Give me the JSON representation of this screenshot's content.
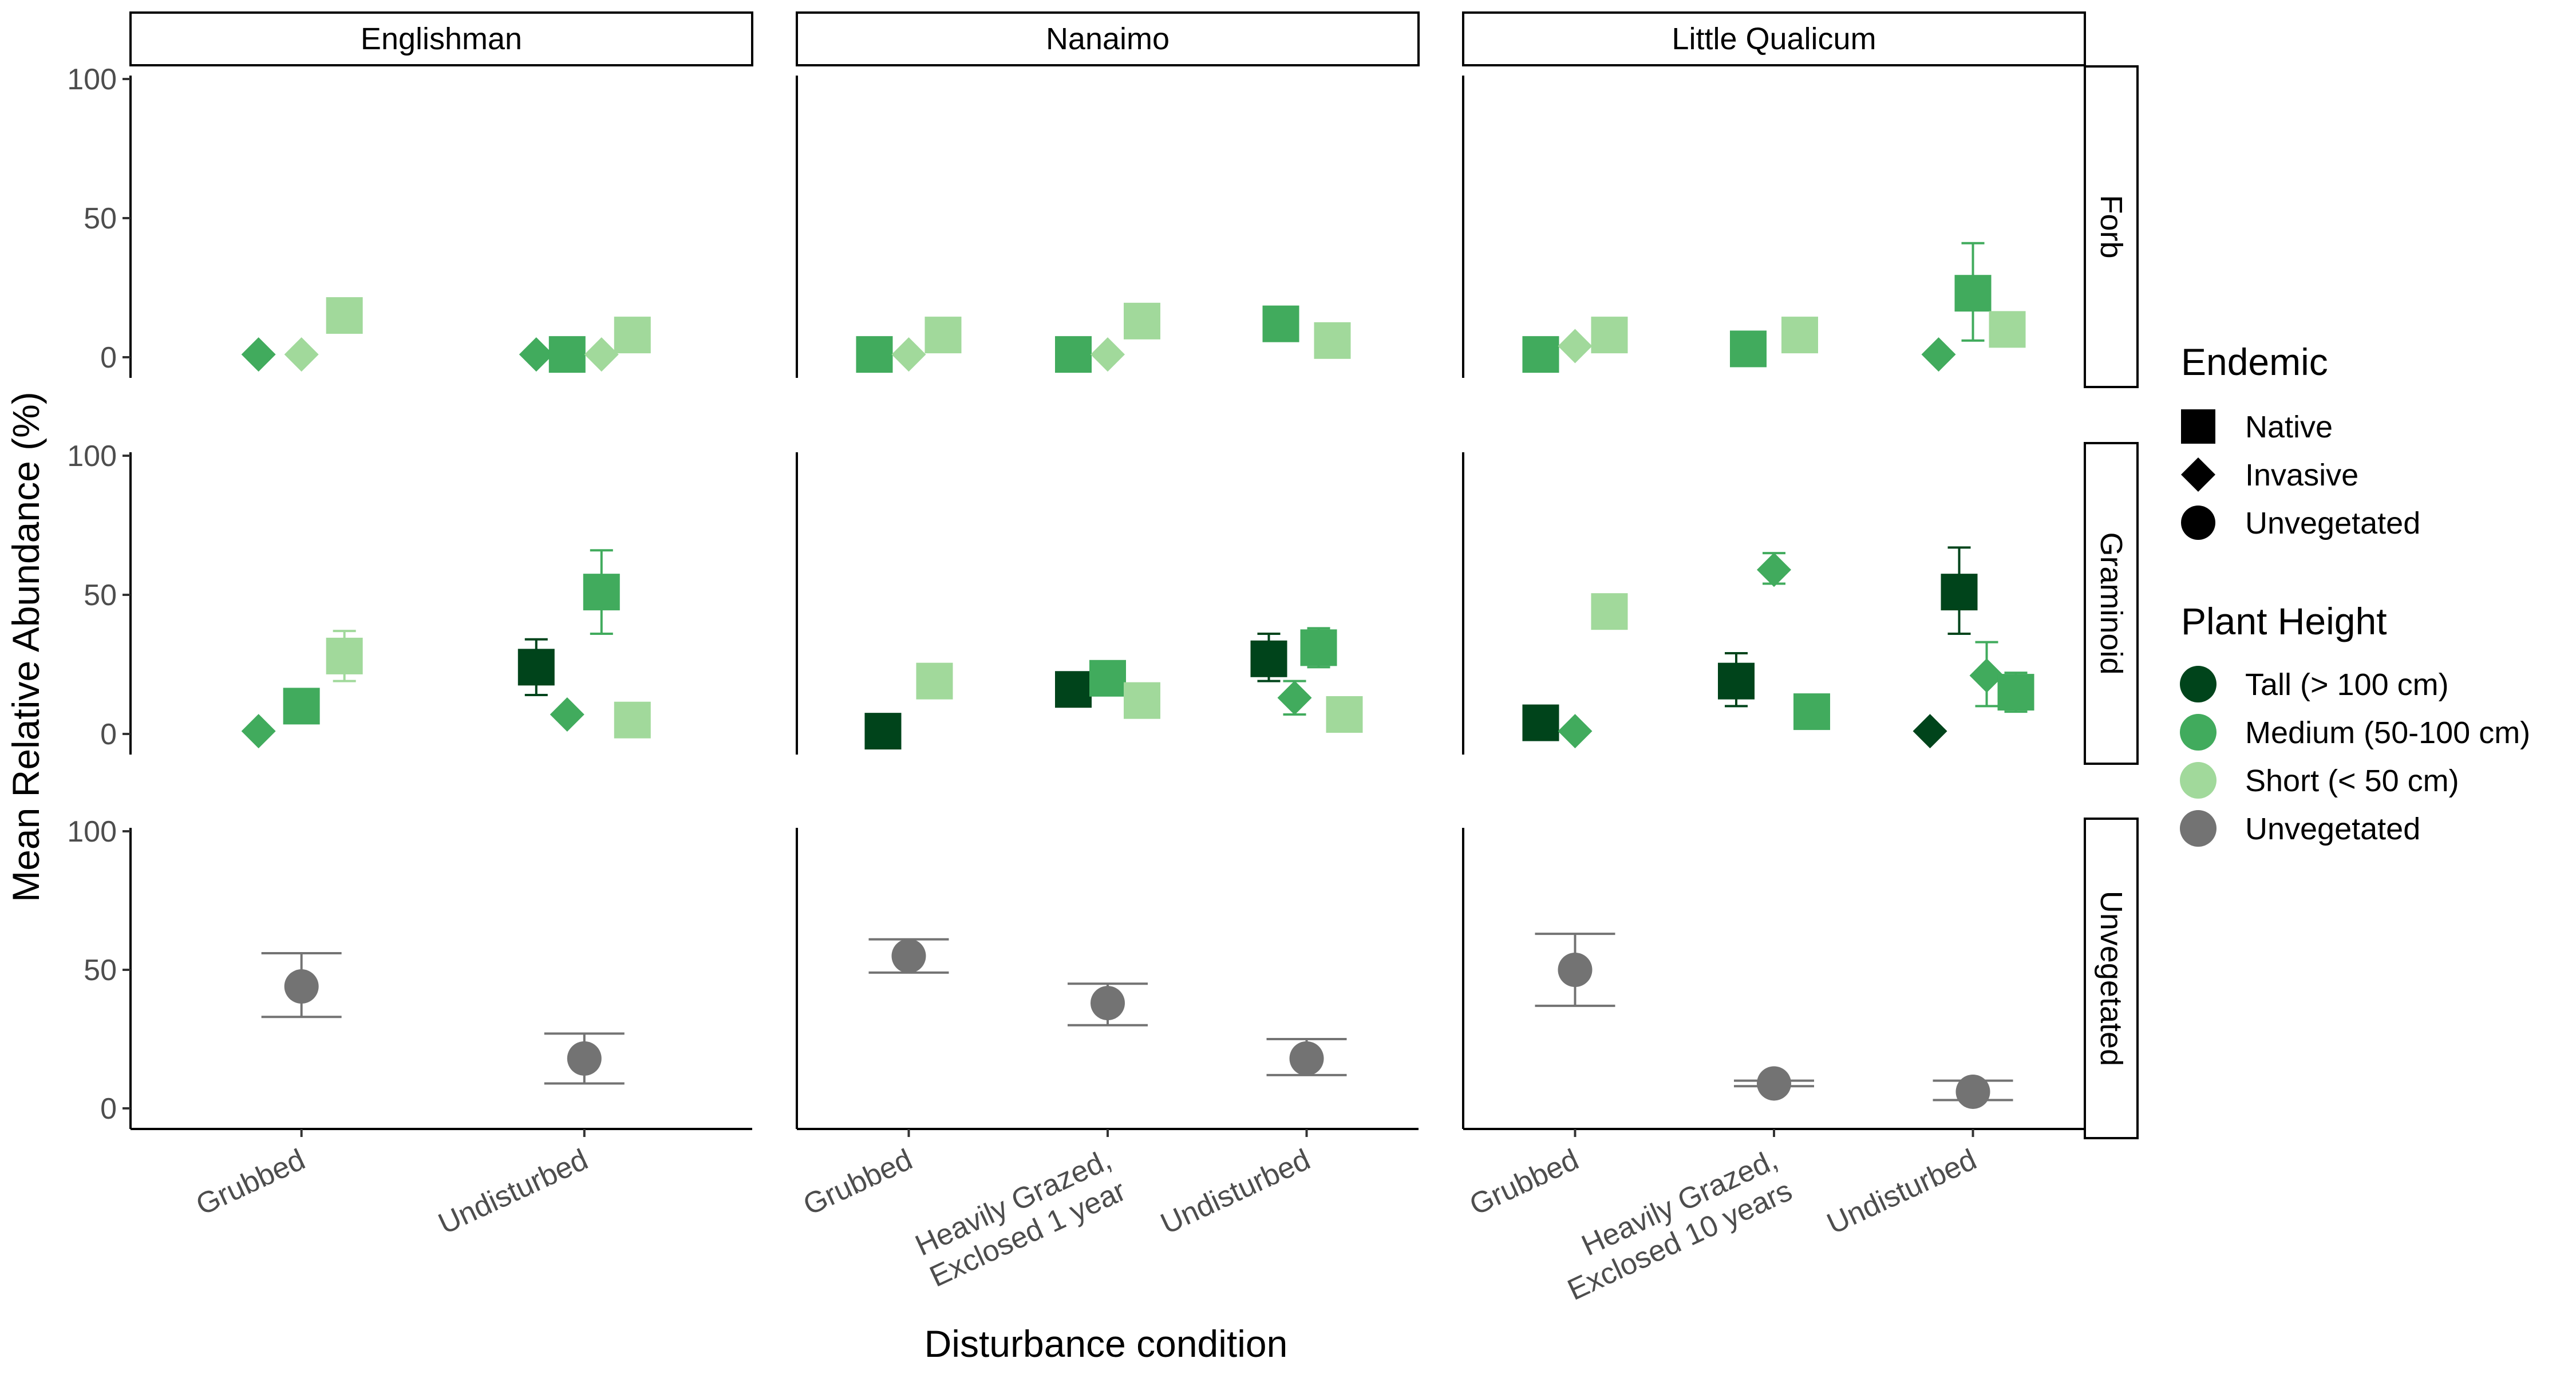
{
  "chart_data": {
    "type": "scatter",
    "title": "",
    "xlabel": "Disturbance condition",
    "ylabel": "Mean Relative Abundance (%)",
    "ylim": [
      0,
      100
    ],
    "yticks": [
      "0",
      "50",
      "100"
    ],
    "grid": false,
    "legend_position": "right",
    "facet_columns": [
      "Englishman",
      "Nanaimo",
      "Little Qualicum"
    ],
    "facet_rows": [
      "Forb",
      "Graminoid",
      "Unvegetated"
    ],
    "conditions": {
      "Englishman": [
        "Grubbed",
        "Undisturbed"
      ],
      "Nanaimo": [
        "Grubbed",
        "Heavily Grazed, Exclosed 1 year",
        "Undisturbed"
      ],
      "Little Qualicum": [
        "Grubbed",
        "Heavily Grazed, Exclosed 10 years",
        "Undisturbed"
      ]
    },
    "legends": {
      "endemic": {
        "title": "Endemic",
        "items": [
          {
            "label": "Native",
            "shape": "square"
          },
          {
            "label": "Invasive",
            "shape": "diamond"
          },
          {
            "label": "Unvegetated",
            "shape": "circle"
          }
        ]
      },
      "height": {
        "title": "Plant Height",
        "items": [
          {
            "label": "Tall (> 100 cm)",
            "color": "#00441b"
          },
          {
            "label": "Medium (50-100 cm)",
            "color": "#41ab5d"
          },
          {
            "label": "Short (< 50 cm)",
            "color": "#a1d99b"
          },
          {
            "label": "Unvegetated",
            "color": "#737373"
          }
        ]
      }
    },
    "colors": {
      "Tall": "#00441b",
      "Medium": "#41ab5d",
      "Short": "#a1d99b",
      "Unvegetated": "#737373"
    },
    "points": [
      {
        "col": "Englishman",
        "row": "Forb",
        "cond": 0,
        "offset": -0.25,
        "shape": "diamond",
        "height": "Medium",
        "y": 1
      },
      {
        "col": "Englishman",
        "row": "Forb",
        "cond": 0,
        "offset": 0,
        "shape": "diamond",
        "height": "Short",
        "y": 1
      },
      {
        "col": "Englishman",
        "row": "Forb",
        "cond": 0,
        "offset": 0.25,
        "shape": "square",
        "height": "Short",
        "y": 15
      },
      {
        "col": "Englishman",
        "row": "Forb",
        "cond": 1,
        "offset": -0.28,
        "shape": "diamond",
        "height": "Medium",
        "y": 1
      },
      {
        "col": "Englishman",
        "row": "Forb",
        "cond": 1,
        "offset": -0.1,
        "shape": "square",
        "height": "Medium",
        "y": 1
      },
      {
        "col": "Englishman",
        "row": "Forb",
        "cond": 1,
        "offset": 0.1,
        "shape": "diamond",
        "height": "Short",
        "y": 1
      },
      {
        "col": "Englishman",
        "row": "Forb",
        "cond": 1,
        "offset": 0.28,
        "shape": "square",
        "height": "Short",
        "y": 8
      },
      {
        "col": "Englishman",
        "row": "Graminoid",
        "cond": 0,
        "offset": -0.25,
        "shape": "diamond",
        "height": "Medium",
        "y": 1
      },
      {
        "col": "Englishman",
        "row": "Graminoid",
        "cond": 0,
        "offset": 0,
        "shape": "square",
        "height": "Medium",
        "y": 10
      },
      {
        "col": "Englishman",
        "row": "Graminoid",
        "cond": 0,
        "offset": 0.25,
        "shape": "square",
        "height": "Short",
        "y": 28,
        "lo": 19,
        "hi": 37
      },
      {
        "col": "Englishman",
        "row": "Graminoid",
        "cond": 1,
        "offset": -0.28,
        "shape": "square",
        "height": "Tall",
        "y": 24,
        "lo": 14,
        "hi": 34
      },
      {
        "col": "Englishman",
        "row": "Graminoid",
        "cond": 1,
        "offset": -0.1,
        "shape": "diamond",
        "height": "Medium",
        "y": 7
      },
      {
        "col": "Englishman",
        "row": "Graminoid",
        "cond": 1,
        "offset": 0.1,
        "shape": "square",
        "height": "Medium",
        "y": 51,
        "lo": 36,
        "hi": 66
      },
      {
        "col": "Englishman",
        "row": "Graminoid",
        "cond": 1,
        "offset": 0.28,
        "shape": "square",
        "height": "Short",
        "y": 5
      },
      {
        "col": "Englishman",
        "row": "Unvegetated",
        "cond": 0,
        "offset": 0,
        "shape": "circle",
        "height": "Unvegetated",
        "y": 44,
        "lo": 33,
        "hi": 56
      },
      {
        "col": "Englishman",
        "row": "Unvegetated",
        "cond": 1,
        "offset": 0,
        "shape": "circle",
        "height": "Unvegetated",
        "y": 18,
        "lo": 9,
        "hi": 27
      },
      {
        "col": "Nanaimo",
        "row": "Forb",
        "cond": 0,
        "offset": -0.2,
        "shape": "square",
        "height": "Medium",
        "y": 1
      },
      {
        "col": "Nanaimo",
        "row": "Forb",
        "cond": 0,
        "offset": 0,
        "shape": "diamond",
        "height": "Short",
        "y": 1
      },
      {
        "col": "Nanaimo",
        "row": "Forb",
        "cond": 0,
        "offset": 0.2,
        "shape": "square",
        "height": "Short",
        "y": 8
      },
      {
        "col": "Nanaimo",
        "row": "Forb",
        "cond": 1,
        "offset": -0.2,
        "shape": "square",
        "height": "Medium",
        "y": 1
      },
      {
        "col": "Nanaimo",
        "row": "Forb",
        "cond": 1,
        "offset": 0,
        "shape": "diamond",
        "height": "Short",
        "y": 1
      },
      {
        "col": "Nanaimo",
        "row": "Forb",
        "cond": 1,
        "offset": 0.2,
        "shape": "square",
        "height": "Short",
        "y": 13
      },
      {
        "col": "Nanaimo",
        "row": "Forb",
        "cond": 2,
        "offset": -0.15,
        "shape": "square",
        "height": "Medium",
        "y": 12
      },
      {
        "col": "Nanaimo",
        "row": "Forb",
        "cond": 2,
        "offset": 0.15,
        "shape": "square",
        "height": "Short",
        "y": 6
      },
      {
        "col": "Nanaimo",
        "row": "Graminoid",
        "cond": 0,
        "offset": -0.15,
        "shape": "square",
        "height": "Tall",
        "y": 1
      },
      {
        "col": "Nanaimo",
        "row": "Graminoid",
        "cond": 0,
        "offset": 0.15,
        "shape": "square",
        "height": "Short",
        "y": 19
      },
      {
        "col": "Nanaimo",
        "row": "Graminoid",
        "cond": 1,
        "offset": -0.2,
        "shape": "square",
        "height": "Tall",
        "y": 16
      },
      {
        "col": "Nanaimo",
        "row": "Graminoid",
        "cond": 1,
        "offset": 0,
        "shape": "square",
        "height": "Medium",
        "y": 20
      },
      {
        "col": "Nanaimo",
        "row": "Graminoid",
        "cond": 1,
        "offset": 0.2,
        "shape": "square",
        "height": "Short",
        "y": 12
      },
      {
        "col": "Nanaimo",
        "row": "Graminoid",
        "cond": 2,
        "offset": -0.22,
        "shape": "square",
        "height": "Tall",
        "y": 27,
        "lo": 19,
        "hi": 36
      },
      {
        "col": "Nanaimo",
        "row": "Graminoid",
        "cond": 2,
        "offset": -0.07,
        "shape": "diamond",
        "height": "Medium",
        "y": 13,
        "lo": 7,
        "hi": 19
      },
      {
        "col": "Nanaimo",
        "row": "Graminoid",
        "cond": 2,
        "offset": 0.07,
        "shape": "square",
        "height": "Medium",
        "y": 31,
        "lo": 24,
        "hi": 38
      },
      {
        "col": "Nanaimo",
        "row": "Graminoid",
        "cond": 2,
        "offset": 0.22,
        "shape": "square",
        "height": "Short",
        "y": 7
      },
      {
        "col": "Nanaimo",
        "row": "Unvegetated",
        "cond": 0,
        "offset": 0,
        "shape": "circle",
        "height": "Unvegetated",
        "y": 55,
        "lo": 49,
        "hi": 61
      },
      {
        "col": "Nanaimo",
        "row": "Unvegetated",
        "cond": 1,
        "offset": 0,
        "shape": "circle",
        "height": "Unvegetated",
        "y": 38,
        "lo": 30,
        "hi": 45
      },
      {
        "col": "Nanaimo",
        "row": "Unvegetated",
        "cond": 2,
        "offset": 0,
        "shape": "circle",
        "height": "Unvegetated",
        "y": 18,
        "lo": 12,
        "hi": 25
      },
      {
        "col": "Little Qualicum",
        "row": "Forb",
        "cond": 0,
        "offset": -0.2,
        "shape": "square",
        "height": "Medium",
        "y": 1
      },
      {
        "col": "Little Qualicum",
        "row": "Forb",
        "cond": 0,
        "offset": 0,
        "shape": "diamond",
        "height": "Short",
        "y": 4
      },
      {
        "col": "Little Qualicum",
        "row": "Forb",
        "cond": 0,
        "offset": 0.2,
        "shape": "square",
        "height": "Short",
        "y": 8
      },
      {
        "col": "Little Qualicum",
        "row": "Forb",
        "cond": 1,
        "offset": -0.15,
        "shape": "square",
        "height": "Medium",
        "y": 3
      },
      {
        "col": "Little Qualicum",
        "row": "Forb",
        "cond": 1,
        "offset": 0.15,
        "shape": "square",
        "height": "Short",
        "y": 8
      },
      {
        "col": "Little Qualicum",
        "row": "Forb",
        "cond": 2,
        "offset": -0.2,
        "shape": "diamond",
        "height": "Medium",
        "y": 1
      },
      {
        "col": "Little Qualicum",
        "row": "Forb",
        "cond": 2,
        "offset": 0,
        "shape": "square",
        "height": "Medium",
        "y": 23,
        "lo": 6,
        "hi": 41
      },
      {
        "col": "Little Qualicum",
        "row": "Forb",
        "cond": 2,
        "offset": 0.2,
        "shape": "square",
        "height": "Short",
        "y": 10
      },
      {
        "col": "Little Qualicum",
        "row": "Graminoid",
        "cond": 0,
        "offset": -0.2,
        "shape": "square",
        "height": "Tall",
        "y": 4
      },
      {
        "col": "Little Qualicum",
        "row": "Graminoid",
        "cond": 0,
        "offset": 0,
        "shape": "diamond",
        "height": "Medium",
        "y": 1
      },
      {
        "col": "Little Qualicum",
        "row": "Graminoid",
        "cond": 0,
        "offset": 0.2,
        "shape": "square",
        "height": "Short",
        "y": 44
      },
      {
        "col": "Little Qualicum",
        "row": "Graminoid",
        "cond": 1,
        "offset": -0.22,
        "shape": "square",
        "height": "Tall",
        "y": 19,
        "lo": 10,
        "hi": 29
      },
      {
        "col": "Little Qualicum",
        "row": "Graminoid",
        "cond": 1,
        "offset": 0,
        "shape": "diamond",
        "height": "Medium",
        "y": 59,
        "lo": 54,
        "hi": 65
      },
      {
        "col": "Little Qualicum",
        "row": "Graminoid",
        "cond": 1,
        "offset": 0.22,
        "shape": "square",
        "height": "Medium",
        "y": 8
      },
      {
        "col": "Little Qualicum",
        "row": "Graminoid",
        "cond": 2,
        "offset": -0.25,
        "shape": "diamond",
        "height": "Tall",
        "y": 1
      },
      {
        "col": "Little Qualicum",
        "row": "Graminoid",
        "cond": 2,
        "offset": -0.08,
        "shape": "square",
        "height": "Tall",
        "y": 51,
        "lo": 36,
        "hi": 67
      },
      {
        "col": "Little Qualicum",
        "row": "Graminoid",
        "cond": 2,
        "offset": 0.08,
        "shape": "diamond",
        "height": "Medium",
        "y": 21,
        "lo": 10,
        "hi": 33
      },
      {
        "col": "Little Qualicum",
        "row": "Graminoid",
        "cond": 2,
        "offset": 0.25,
        "shape": "square",
        "height": "Medium",
        "y": 15,
        "lo": 8,
        "hi": 22
      },
      {
        "col": "Little Qualicum",
        "row": "Unvegetated",
        "cond": 0,
        "offset": 0,
        "shape": "circle",
        "height": "Unvegetated",
        "y": 50,
        "lo": 37,
        "hi": 63
      },
      {
        "col": "Little Qualicum",
        "row": "Unvegetated",
        "cond": 1,
        "offset": 0,
        "shape": "circle",
        "height": "Unvegetated",
        "y": 9,
        "lo": 8,
        "hi": 10
      },
      {
        "col": "Little Qualicum",
        "row": "Unvegetated",
        "cond": 2,
        "offset": 0,
        "shape": "circle",
        "height": "Unvegetated",
        "y": 6,
        "lo": 3,
        "hi": 10
      }
    ]
  }
}
